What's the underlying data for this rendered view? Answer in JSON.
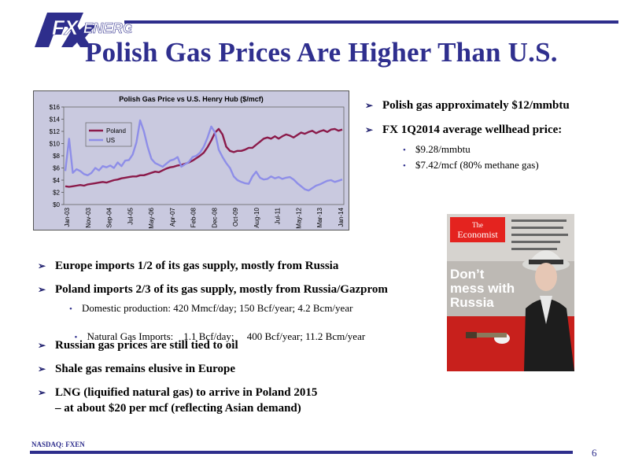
{
  "logo": {
    "brand_fx": "FX",
    "brand_word": "ENERGY"
  },
  "title": "Polish Gas Prices Are Higher Than U.S.",
  "chart_data": {
    "type": "line",
    "title": "Polish Gas Price  vs U.S. Henry Hub ($/mcf)",
    "y_ticks": [
      "$16",
      "$14",
      "$12",
      "$10",
      "$8",
      "$6",
      "$4",
      "$2",
      "$0"
    ],
    "x_ticks": [
      "Jan-03",
      "Nov-03",
      "Sep-04",
      "Jul-05",
      "May-06",
      "Apr-07",
      "Feb-08",
      "Dec-08",
      "Oct-09",
      "Aug-10",
      "Jul-11",
      "May-12",
      "Mar-13",
      "Jan-14"
    ],
    "ylim": [
      0,
      16
    ],
    "series": [
      {
        "name": "Poland",
        "color": "#8b1a4a",
        "values": [
          3,
          2.9,
          3,
          3.1,
          3.2,
          3.1,
          3.3,
          3.4,
          3.5,
          3.6,
          3.7,
          3.6,
          3.8,
          4.0,
          4.1,
          4.3,
          4.4,
          4.5,
          4.6,
          4.6,
          4.8,
          4.8,
          5.0,
          5.2,
          5.4,
          5.3,
          5.6,
          5.9,
          6.1,
          6.2,
          6.4,
          6.5,
          6.7,
          6.9,
          7.2,
          7.6,
          8.0,
          8.5,
          9.4,
          10.5,
          11.8,
          12.4,
          11.5,
          9.5,
          8.8,
          8.6,
          8.8,
          8.8,
          9.0,
          9.3,
          9.3,
          9.8,
          10.3,
          10.8,
          11.0,
          10.8,
          11.2,
          10.8,
          11.2,
          11.5,
          11.3,
          11.0,
          11.4,
          11.8,
          11.6,
          11.9,
          12.1,
          11.7,
          12.0,
          12.2,
          11.9,
          12.3,
          12.4,
          12.1,
          12.3
        ]
      },
      {
        "name": "US",
        "color": "#8e8ee8",
        "values": [
          5.5,
          10.8,
          5.2,
          5.8,
          5.5,
          5.0,
          4.8,
          5.2,
          6.0,
          5.6,
          6.3,
          6.1,
          6.4,
          6.0,
          6.9,
          6.3,
          7.2,
          7.3,
          8.2,
          10.2,
          13.8,
          12.0,
          9.5,
          7.5,
          6.8,
          6.5,
          6.2,
          6.7,
          7.2,
          7.4,
          7.8,
          6.2,
          6.6,
          7.0,
          7.8,
          8.0,
          8.5,
          9.5,
          11.0,
          12.8,
          11.8,
          9.0,
          7.8,
          6.8,
          6.0,
          4.6,
          4.0,
          3.7,
          3.5,
          3.4,
          4.6,
          5.4,
          4.4,
          4.1,
          4.2,
          4.6,
          4.3,
          4.5,
          4.2,
          4.4,
          4.5,
          4.1,
          3.5,
          3.0,
          2.5,
          2.3,
          2.7,
          3.1,
          3.3,
          3.6,
          3.9,
          4.0,
          3.7,
          3.9,
          4.1
        ]
      }
    ],
    "legend": "top-left",
    "grid": false
  },
  "right_bullets": [
    {
      "text": "Polish gas approximately $12/mmbtu"
    },
    {
      "text": "FX 1Q2014 average wellhead price:"
    }
  ],
  "right_subs": [
    "$9.28/mmbtu",
    "$7.42/mcf (80% methane gas)"
  ],
  "cover": {
    "mag_line1": "The",
    "mag_line2": "Economist",
    "headline1": "Don’t",
    "headline2": "mess with",
    "headline3": "Russia"
  },
  "left_bullets": {
    "b1": "Europe imports 1/2 of its gas supply, mostly from Russia",
    "b2": "Poland imports 2/3 of its gas supply, mostly from Russia/Gazprom",
    "s1": "Domestic production: 420 Mmcf/day; 150 Bcf/year; 4.2 Bcm/year",
    "s2": "Natural Gas Imports:    1.1 Bcf/day;     400 Bcf/year; 11.2 Bcm/year",
    "b3": "Russian gas prices are still tied to oil",
    "b4": "Shale gas remains elusive in Europe",
    "b5a": "LNG (liquified natural gas) to arrive in Poland 2015",
    "b5b": "– at about $20 per mcf (reflecting Asian demand)"
  },
  "footer": {
    "ticker": "NASDAQ: FXEN",
    "page": "6"
  }
}
